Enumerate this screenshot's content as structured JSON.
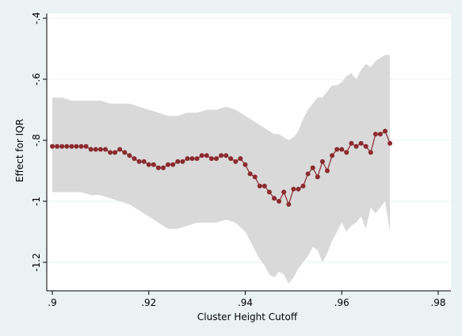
{
  "chart_data": {
    "type": "line",
    "xlabel": "Cluster Height Cutoff",
    "ylabel": "Effect for IQR",
    "xlim": [
      0.9,
      0.98
    ],
    "ylim": [
      -1.3,
      -0.4
    ],
    "x_ticks": [
      0.9,
      0.92,
      0.94,
      0.96,
      0.98
    ],
    "x_tick_labels": [
      ".9",
      ".92",
      ".94",
      ".96",
      ".98"
    ],
    "y_ticks": [
      -1.2,
      -1.0,
      -0.8,
      -0.6,
      -0.4
    ],
    "y_tick_labels": [
      "-1.2",
      "-1",
      "-.8",
      "-.6",
      "-.4"
    ],
    "grid": true,
    "colors": {
      "background": "#eaf2f3",
      "plot_area": "#ffffff",
      "band": "#d9d9d9",
      "line": "#8b2a2e",
      "grid": "#eaf2f3"
    },
    "series": [
      {
        "type": "band",
        "x": [
          0.9,
          0.902,
          0.904,
          0.906,
          0.908,
          0.91,
          0.912,
          0.914,
          0.916,
          0.918,
          0.92,
          0.922,
          0.924,
          0.926,
          0.928,
          0.93,
          0.932,
          0.934,
          0.936,
          0.938,
          0.94,
          0.941,
          0.942,
          0.943,
          0.944,
          0.945,
          0.946,
          0.947,
          0.948,
          0.949,
          0.95,
          0.951,
          0.952,
          0.953,
          0.954,
          0.955,
          0.956,
          0.957,
          0.958,
          0.959,
          0.96,
          0.961,
          0.962,
          0.963,
          0.964,
          0.965,
          0.966,
          0.967,
          0.968,
          0.969,
          0.97
        ],
        "upper": [
          -0.66,
          -0.66,
          -0.67,
          -0.67,
          -0.67,
          -0.67,
          -0.68,
          -0.68,
          -0.68,
          -0.69,
          -0.7,
          -0.71,
          -0.72,
          -0.72,
          -0.71,
          -0.71,
          -0.7,
          -0.7,
          -0.69,
          -0.7,
          -0.72,
          -0.73,
          -0.74,
          -0.75,
          -0.76,
          -0.77,
          -0.78,
          -0.78,
          -0.79,
          -0.8,
          -0.79,
          -0.77,
          -0.73,
          -0.7,
          -0.68,
          -0.66,
          -0.66,
          -0.64,
          -0.62,
          -0.62,
          -0.61,
          -0.59,
          -0.58,
          -0.6,
          -0.57,
          -0.55,
          -0.56,
          -0.54,
          -0.53,
          -0.52,
          -0.52
        ],
        "lower": [
          -0.97,
          -0.97,
          -0.97,
          -0.97,
          -0.98,
          -0.98,
          -0.99,
          -1.0,
          -1.01,
          -1.03,
          -1.05,
          -1.07,
          -1.09,
          -1.09,
          -1.08,
          -1.07,
          -1.07,
          -1.07,
          -1.06,
          -1.07,
          -1.1,
          -1.13,
          -1.16,
          -1.19,
          -1.21,
          -1.24,
          -1.25,
          -1.23,
          -1.24,
          -1.27,
          -1.25,
          -1.22,
          -1.2,
          -1.18,
          -1.15,
          -1.16,
          -1.2,
          -1.17,
          -1.13,
          -1.1,
          -1.07,
          -1.1,
          -1.08,
          -1.07,
          -1.05,
          -1.09,
          -1.02,
          -1.04,
          -1.02,
          -1.0,
          -1.1
        ]
      },
      {
        "type": "line",
        "x": [
          0.9,
          0.901,
          0.902,
          0.903,
          0.904,
          0.905,
          0.906,
          0.907,
          0.908,
          0.909,
          0.91,
          0.911,
          0.912,
          0.913,
          0.914,
          0.915,
          0.916,
          0.917,
          0.918,
          0.919,
          0.92,
          0.921,
          0.922,
          0.923,
          0.924,
          0.925,
          0.926,
          0.927,
          0.928,
          0.929,
          0.93,
          0.931,
          0.932,
          0.933,
          0.934,
          0.935,
          0.936,
          0.937,
          0.938,
          0.939,
          0.94,
          0.941,
          0.942,
          0.943,
          0.944,
          0.945,
          0.946,
          0.947,
          0.948,
          0.949,
          0.95,
          0.951,
          0.952,
          0.953,
          0.954,
          0.955,
          0.956,
          0.957,
          0.958,
          0.959,
          0.96,
          0.961,
          0.962,
          0.963,
          0.964,
          0.965,
          0.966,
          0.967,
          0.968,
          0.969,
          0.97
        ],
        "y": [
          -0.82,
          -0.82,
          -0.82,
          -0.82,
          -0.82,
          -0.82,
          -0.82,
          -0.82,
          -0.83,
          -0.83,
          -0.83,
          -0.83,
          -0.84,
          -0.84,
          -0.83,
          -0.84,
          -0.85,
          -0.86,
          -0.87,
          -0.87,
          -0.88,
          -0.88,
          -0.89,
          -0.89,
          -0.88,
          -0.88,
          -0.87,
          -0.87,
          -0.86,
          -0.86,
          -0.86,
          -0.85,
          -0.85,
          -0.86,
          -0.86,
          -0.85,
          -0.85,
          -0.86,
          -0.87,
          -0.86,
          -0.88,
          -0.91,
          -0.92,
          -0.95,
          -0.95,
          -0.97,
          -0.99,
          -1.0,
          -0.97,
          -1.01,
          -0.96,
          -0.96,
          -0.95,
          -0.91,
          -0.89,
          -0.92,
          -0.87,
          -0.9,
          -0.85,
          -0.83,
          -0.83,
          -0.84,
          -0.81,
          -0.82,
          -0.81,
          -0.82,
          -0.84,
          -0.78,
          -0.78,
          -0.77,
          -0.81
        ]
      }
    ]
  }
}
